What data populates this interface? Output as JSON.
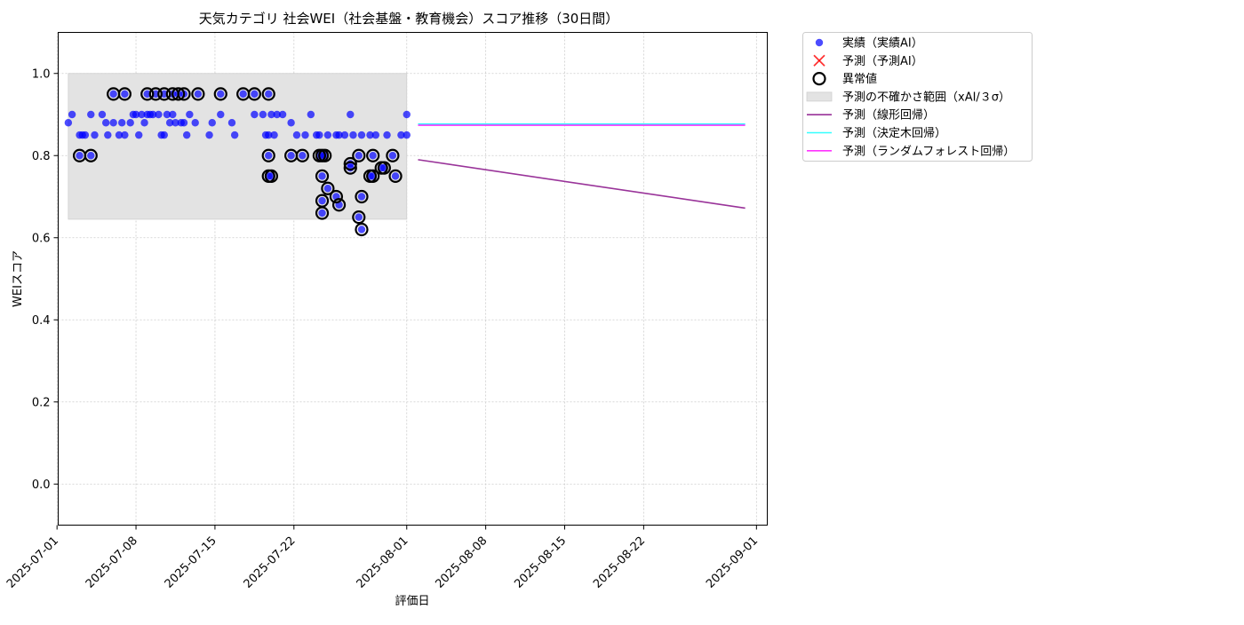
{
  "chart_data": {
    "type": "scatter",
    "title": "天気カテゴリ 社会WEI（社会基盤・教育機会）スコア推移（30日間）",
    "xlabel": "評価日",
    "ylabel": "WEIスコア",
    "xlim": [
      "2025-07-01T02:30",
      "2025-09-01T23:00"
    ],
    "ylim": [
      -0.1,
      1.1
    ],
    "x_ticks": [
      "2025-07-01",
      "2025-07-08",
      "2025-07-15",
      "2025-07-22",
      "2025-08-01",
      "2025-08-08",
      "2025-08-15",
      "2025-08-22",
      "2025-09-01"
    ],
    "y_ticks": [
      "0.0",
      "0.2",
      "0.4",
      "0.6",
      "0.8",
      "1.0"
    ],
    "grid": true,
    "legend_position": "outside top-right",
    "uncertainty_band": {
      "x": [
        "2025-07-02",
        "2025-08-01"
      ],
      "y": [
        0.645,
        1.0
      ]
    },
    "series": [
      {
        "name": "実績（実績AI）",
        "kind": "scatter",
        "color": "#0000ff",
        "points": [
          [
            "2025-07-02T00:00",
            0.88
          ],
          [
            "2025-07-02T08:00",
            0.9
          ],
          [
            "2025-07-03T00:00",
            0.85
          ],
          [
            "2025-07-03T06:00",
            0.85
          ],
          [
            "2025-07-03T12:00",
            0.85
          ],
          [
            "2025-07-04T00:00",
            0.9
          ],
          [
            "2025-07-04T08:00",
            0.85
          ],
          [
            "2025-07-05T00:00",
            0.9
          ],
          [
            "2025-07-05T08:00",
            0.88
          ],
          [
            "2025-07-05T12:00",
            0.85
          ],
          [
            "2025-07-06T00:00",
            0.88
          ],
          [
            "2025-07-06T12:00",
            0.85
          ],
          [
            "2025-07-06T18:00",
            0.88
          ],
          [
            "2025-07-07T00:00",
            0.85
          ],
          [
            "2025-07-07T12:00",
            0.88
          ],
          [
            "2025-07-07T18:00",
            0.9
          ],
          [
            "2025-07-08T00:00",
            0.9
          ],
          [
            "2025-07-08T06:00",
            0.85
          ],
          [
            "2025-07-08T12:00",
            0.9
          ],
          [
            "2025-07-08T18:00",
            0.88
          ],
          [
            "2025-07-09T00:00",
            0.9
          ],
          [
            "2025-07-09T06:00",
            0.9
          ],
          [
            "2025-07-09T12:00",
            0.9
          ],
          [
            "2025-07-10T00:00",
            0.9
          ],
          [
            "2025-07-10T06:00",
            0.85
          ],
          [
            "2025-07-10T12:00",
            0.85
          ],
          [
            "2025-07-10T18:00",
            0.9
          ],
          [
            "2025-07-11T00:00",
            0.88
          ],
          [
            "2025-07-11T06:00",
            0.9
          ],
          [
            "2025-07-11T12:00",
            0.88
          ],
          [
            "2025-07-12T00:00",
            0.88
          ],
          [
            "2025-07-12T06:00",
            0.88
          ],
          [
            "2025-07-12T12:00",
            0.85
          ],
          [
            "2025-07-12T18:00",
            0.9
          ],
          [
            "2025-07-13T06:00",
            0.88
          ],
          [
            "2025-07-14T12:00",
            0.85
          ],
          [
            "2025-07-14T18:00",
            0.88
          ],
          [
            "2025-07-15T12:00",
            0.9
          ],
          [
            "2025-07-16T12:00",
            0.88
          ],
          [
            "2025-07-16T18:00",
            0.85
          ],
          [
            "2025-07-18T12:00",
            0.9
          ],
          [
            "2025-07-19T06:00",
            0.9
          ],
          [
            "2025-07-19T12:00",
            0.85
          ],
          [
            "2025-07-19T18:00",
            0.85
          ],
          [
            "2025-07-20T00:00",
            0.9
          ],
          [
            "2025-07-20T06:00",
            0.85
          ],
          [
            "2025-07-20T12:00",
            0.9
          ],
          [
            "2025-07-21T00:00",
            0.9
          ],
          [
            "2025-07-21T18:00",
            0.88
          ],
          [
            "2025-07-22T06:00",
            0.85
          ],
          [
            "2025-07-23T00:00",
            0.85
          ],
          [
            "2025-07-23T12:00",
            0.9
          ],
          [
            "2025-07-24T00:00",
            0.85
          ],
          [
            "2025-07-24T06:00",
            0.85
          ],
          [
            "2025-07-25T00:00",
            0.85
          ],
          [
            "2025-07-25T18:00",
            0.85
          ],
          [
            "2025-07-26T00:00",
            0.85
          ],
          [
            "2025-07-26T12:00",
            0.85
          ],
          [
            "2025-07-27T00:00",
            0.9
          ],
          [
            "2025-07-27T06:00",
            0.85
          ],
          [
            "2025-07-28T00:00",
            0.85
          ],
          [
            "2025-07-28T18:00",
            0.85
          ],
          [
            "2025-07-29T06:00",
            0.85
          ],
          [
            "2025-07-30T06:00",
            0.85
          ],
          [
            "2025-07-31T12:00",
            0.85
          ],
          [
            "2025-08-01T00:00",
            0.9
          ],
          [
            "2025-08-01T00:00",
            0.85
          ],
          [
            "2025-07-03T00:00",
            0.8
          ],
          [
            "2025-07-04T00:00",
            0.8
          ],
          [
            "2025-07-06T00:00",
            0.95
          ],
          [
            "2025-07-07T00:00",
            0.95
          ],
          [
            "2025-07-09T00:00",
            0.95
          ],
          [
            "2025-07-09T18:00",
            0.95
          ],
          [
            "2025-07-10T12:00",
            0.95
          ],
          [
            "2025-07-11T06:00",
            0.95
          ],
          [
            "2025-07-11T18:00",
            0.95
          ],
          [
            "2025-07-12T06:00",
            0.95
          ],
          [
            "2025-07-13T12:00",
            0.95
          ],
          [
            "2025-07-15T12:00",
            0.95
          ],
          [
            "2025-07-17T12:00",
            0.95
          ],
          [
            "2025-07-18T12:00",
            0.95
          ],
          [
            "2025-07-19T18:00",
            0.95
          ],
          [
            "2025-07-19T18:00",
            0.8
          ],
          [
            "2025-07-19T18:00",
            0.75
          ],
          [
            "2025-07-20T00:00",
            0.75
          ],
          [
            "2025-07-21T18:00",
            0.8
          ],
          [
            "2025-07-22T18:00",
            0.8
          ],
          [
            "2025-07-24T06:00",
            0.8
          ],
          [
            "2025-07-24T12:00",
            0.8
          ],
          [
            "2025-07-24T18:00",
            0.8
          ],
          [
            "2025-07-24T12:00",
            0.75
          ],
          [
            "2025-07-24T12:00",
            0.69
          ],
          [
            "2025-07-24T12:00",
            0.66
          ],
          [
            "2025-07-25T00:00",
            0.72
          ],
          [
            "2025-07-25T18:00",
            0.7
          ],
          [
            "2025-07-26T00:00",
            0.68
          ],
          [
            "2025-07-27T00:00",
            0.77
          ],
          [
            "2025-07-27T00:00",
            0.78
          ],
          [
            "2025-07-27T18:00",
            0.8
          ],
          [
            "2025-07-27T18:00",
            0.65
          ],
          [
            "2025-07-28T00:00",
            0.7
          ],
          [
            "2025-07-28T00:00",
            0.62
          ],
          [
            "2025-07-28T18:00",
            0.75
          ],
          [
            "2025-07-29T00:00",
            0.8
          ],
          [
            "2025-07-29T00:00",
            0.75
          ],
          [
            "2025-07-29T18:00",
            0.77
          ],
          [
            "2025-07-30T00:00",
            0.77
          ],
          [
            "2025-07-30T18:00",
            0.8
          ],
          [
            "2025-07-31T00:00",
            0.75
          ]
        ]
      },
      {
        "name": "予測（予測AI）",
        "kind": "scatter",
        "color": "#ff0000",
        "points": []
      },
      {
        "name": "異常値",
        "kind": "outlier-ring",
        "color": "#000000",
        "points": [
          [
            "2025-07-03T00:00",
            0.8
          ],
          [
            "2025-07-04T00:00",
            0.8
          ],
          [
            "2025-07-06T00:00",
            0.95
          ],
          [
            "2025-07-07T00:00",
            0.95
          ],
          [
            "2025-07-09T00:00",
            0.95
          ],
          [
            "2025-07-09T18:00",
            0.95
          ],
          [
            "2025-07-10T12:00",
            0.95
          ],
          [
            "2025-07-11T06:00",
            0.95
          ],
          [
            "2025-07-11T18:00",
            0.95
          ],
          [
            "2025-07-12T06:00",
            0.95
          ],
          [
            "2025-07-13T12:00",
            0.95
          ],
          [
            "2025-07-15T12:00",
            0.95
          ],
          [
            "2025-07-17T12:00",
            0.95
          ],
          [
            "2025-07-18T12:00",
            0.95
          ],
          [
            "2025-07-19T18:00",
            0.95
          ],
          [
            "2025-07-19T18:00",
            0.8
          ],
          [
            "2025-07-19T18:00",
            0.75
          ],
          [
            "2025-07-20T00:00",
            0.75
          ],
          [
            "2025-07-21T18:00",
            0.8
          ],
          [
            "2025-07-22T18:00",
            0.8
          ],
          [
            "2025-07-24T06:00",
            0.8
          ],
          [
            "2025-07-24T12:00",
            0.8
          ],
          [
            "2025-07-24T18:00",
            0.8
          ],
          [
            "2025-07-24T12:00",
            0.75
          ],
          [
            "2025-07-24T12:00",
            0.69
          ],
          [
            "2025-07-24T12:00",
            0.66
          ],
          [
            "2025-07-25T00:00",
            0.72
          ],
          [
            "2025-07-25T18:00",
            0.7
          ],
          [
            "2025-07-26T00:00",
            0.68
          ],
          [
            "2025-07-27T00:00",
            0.77
          ],
          [
            "2025-07-27T00:00",
            0.78
          ],
          [
            "2025-07-27T18:00",
            0.8
          ],
          [
            "2025-07-27T18:00",
            0.65
          ],
          [
            "2025-07-28T00:00",
            0.7
          ],
          [
            "2025-07-28T00:00",
            0.62
          ],
          [
            "2025-07-28T18:00",
            0.75
          ],
          [
            "2025-07-29T00:00",
            0.8
          ],
          [
            "2025-07-29T00:00",
            0.75
          ],
          [
            "2025-07-29T18:00",
            0.77
          ],
          [
            "2025-07-30T00:00",
            0.77
          ],
          [
            "2025-07-30T18:00",
            0.8
          ],
          [
            "2025-07-31T00:00",
            0.75
          ]
        ]
      },
      {
        "name": "予測の不確かさ範囲（xAI/３σ）",
        "kind": "band",
        "color": "#e3e3e3"
      },
      {
        "name": "予測（線形回帰）",
        "kind": "line",
        "color": "#993399",
        "points": [
          [
            "2025-08-02T00:00",
            0.79
          ],
          [
            "2025-08-31T00:00",
            0.672
          ]
        ]
      },
      {
        "name": "予測（決定木回帰）",
        "kind": "line",
        "color": "#33ffff",
        "points": [
          [
            "2025-08-02T00:00",
            0.877
          ],
          [
            "2025-08-31T00:00",
            0.877
          ]
        ]
      },
      {
        "name": "予測（ランダムフォレスト回帰）",
        "kind": "line",
        "color": "#ff33ff",
        "points": [
          [
            "2025-08-02T00:00",
            0.874
          ],
          [
            "2025-08-31T00:00",
            0.874
          ]
        ]
      }
    ]
  }
}
